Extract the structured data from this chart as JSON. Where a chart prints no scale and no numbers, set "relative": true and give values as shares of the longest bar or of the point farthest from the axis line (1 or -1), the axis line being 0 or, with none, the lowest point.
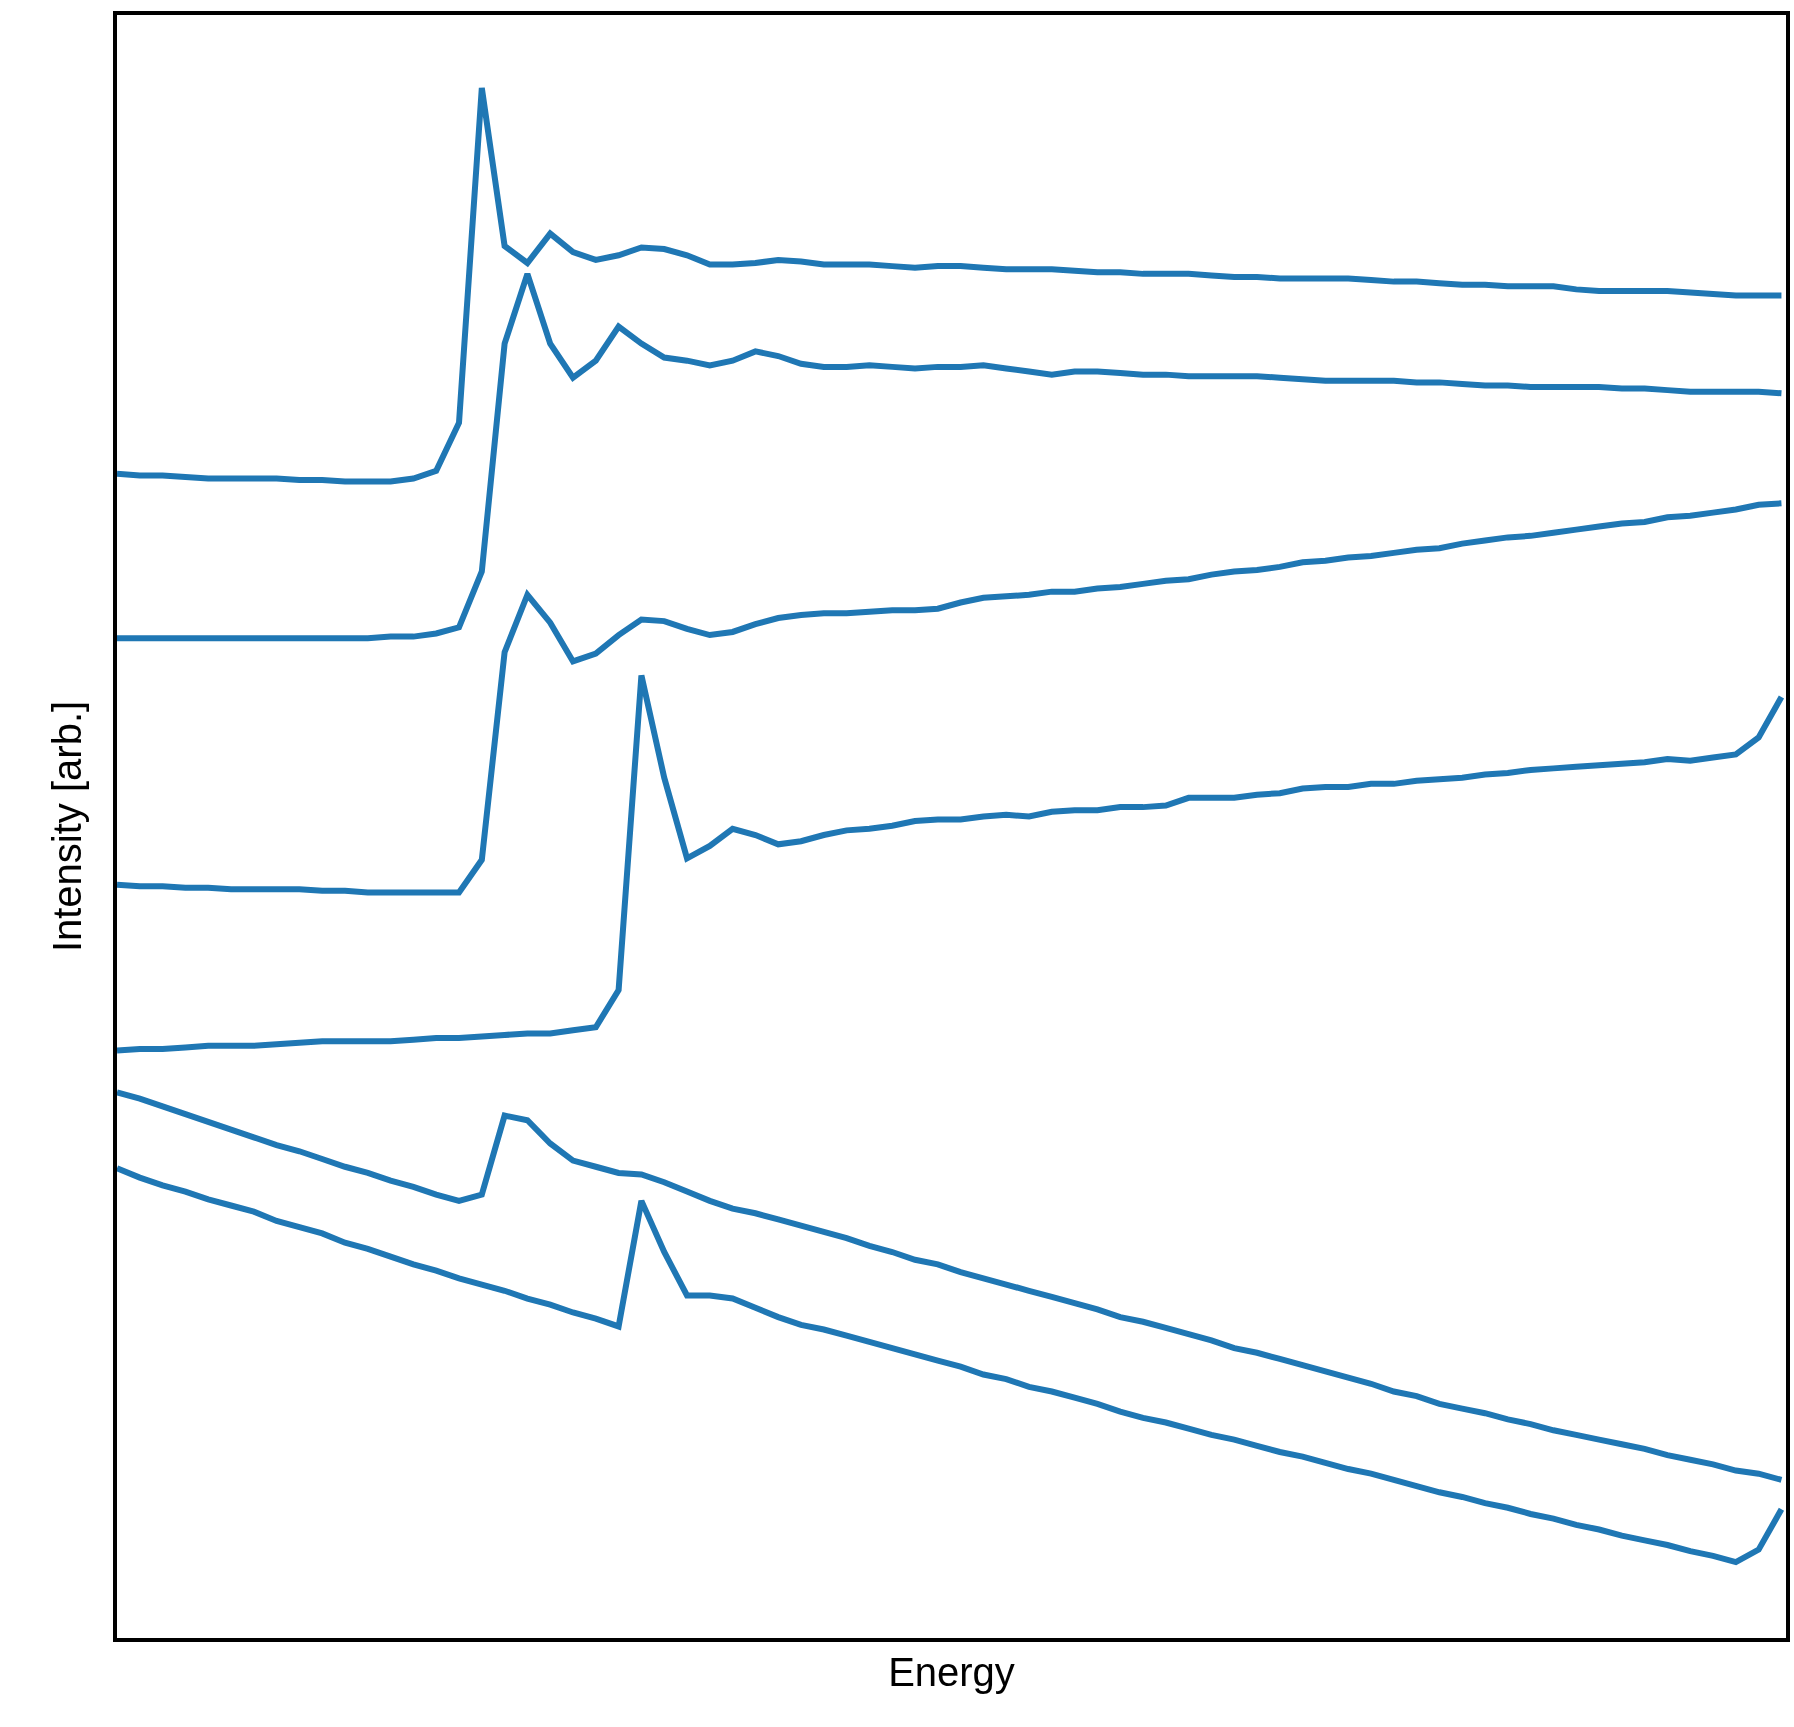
{
  "chart_data": {
    "type": "line",
    "xlabel": "Energy",
    "ylabel": "Intensity [arb.]",
    "relative": true,
    "categories": [
      null,
      null,
      null,
      null,
      null,
      null,
      null,
      null,
      null,
      null,
      null,
      null,
      null,
      null,
      null,
      null,
      null,
      null,
      null,
      null,
      null,
      null,
      null,
      null,
      null,
      null,
      null,
      null,
      null,
      null,
      null,
      null,
      null,
      null,
      null,
      null,
      null,
      null,
      null,
      null,
      null,
      null,
      null,
      null,
      null,
      null,
      null,
      null,
      null,
      null,
      null,
      null,
      null,
      null,
      null,
      null,
      null,
      null,
      null,
      null,
      null,
      null,
      null,
      null,
      null,
      null,
      null,
      null,
      null,
      null,
      null,
      null,
      null,
      null
    ],
    "series": [
      {
        "color": "#1f77b4",
        "values": [
          0.751,
          0.75,
          0.75,
          0.749,
          0.748,
          0.748,
          0.748,
          0.748,
          0.747,
          0.747,
          0.746,
          0.746,
          0.746,
          0.748,
          0.753,
          0.784,
          1.0,
          0.898,
          0.887,
          0.906,
          0.894,
          0.889,
          0.892,
          0.897,
          0.896,
          0.892,
          0.886,
          0.886,
          0.887,
          0.889,
          0.888,
          0.886,
          0.886,
          0.886,
          0.885,
          0.884,
          0.885,
          0.885,
          0.884,
          0.883,
          0.883,
          0.883,
          0.882,
          0.881,
          0.881,
          0.88,
          0.88,
          0.88,
          0.879,
          0.878,
          0.878,
          0.877,
          0.877,
          0.877,
          0.877,
          0.876,
          0.875,
          0.875,
          0.874,
          0.873,
          0.873,
          0.872,
          0.872,
          0.872,
          0.87,
          0.869,
          0.869,
          0.869,
          0.869,
          0.868,
          0.867,
          0.866,
          0.866,
          0.866
        ]
      },
      {
        "color": "#1f77b4",
        "values": [
          0.645,
          0.645,
          0.645,
          0.645,
          0.645,
          0.645,
          0.645,
          0.645,
          0.645,
          0.645,
          0.645,
          0.645,
          0.646,
          0.646,
          0.648,
          0.652,
          0.688,
          0.835,
          0.88,
          0.835,
          0.813,
          0.824,
          0.846,
          0.835,
          0.826,
          0.824,
          0.821,
          0.824,
          0.83,
          0.827,
          0.822,
          0.82,
          0.82,
          0.821,
          0.82,
          0.819,
          0.82,
          0.82,
          0.821,
          0.819,
          0.817,
          0.815,
          0.817,
          0.817,
          0.816,
          0.815,
          0.815,
          0.814,
          0.814,
          0.814,
          0.814,
          0.813,
          0.812,
          0.811,
          0.811,
          0.811,
          0.811,
          0.81,
          0.81,
          0.809,
          0.808,
          0.808,
          0.807,
          0.807,
          0.807,
          0.807,
          0.806,
          0.806,
          0.805,
          0.804,
          0.804,
          0.804,
          0.804,
          0.803
        ]
      },
      {
        "color": "#1f77b4",
        "values": [
          0.486,
          0.485,
          0.485,
          0.484,
          0.484,
          0.483,
          0.483,
          0.483,
          0.483,
          0.482,
          0.482,
          0.481,
          0.481,
          0.481,
          0.481,
          0.481,
          0.502,
          0.636,
          0.673,
          0.655,
          0.63,
          0.635,
          0.647,
          0.657,
          0.656,
          0.651,
          0.647,
          0.649,
          0.654,
          0.658,
          0.66,
          0.661,
          0.661,
          0.662,
          0.663,
          0.663,
          0.664,
          0.668,
          0.671,
          0.672,
          0.673,
          0.675,
          0.675,
          0.677,
          0.678,
          0.68,
          0.682,
          0.683,
          0.686,
          0.688,
          0.689,
          0.691,
          0.694,
          0.695,
          0.697,
          0.698,
          0.7,
          0.702,
          0.703,
          0.706,
          0.708,
          0.71,
          0.711,
          0.713,
          0.715,
          0.717,
          0.719,
          0.72,
          0.723,
          0.724,
          0.726,
          0.728,
          0.731,
          0.732
        ]
      },
      {
        "color": "#1f77b4",
        "values": [
          0.379,
          0.38,
          0.38,
          0.381,
          0.382,
          0.382,
          0.382,
          0.383,
          0.384,
          0.385,
          0.385,
          0.385,
          0.385,
          0.386,
          0.387,
          0.387,
          0.388,
          0.389,
          0.39,
          0.39,
          0.392,
          0.394,
          0.418,
          0.621,
          0.555,
          0.503,
          0.511,
          0.522,
          0.518,
          0.512,
          0.514,
          0.518,
          0.521,
          0.522,
          0.524,
          0.527,
          0.528,
          0.528,
          0.53,
          0.531,
          0.53,
          0.533,
          0.534,
          0.534,
          0.536,
          0.536,
          0.537,
          0.542,
          0.542,
          0.542,
          0.544,
          0.545,
          0.548,
          0.549,
          0.549,
          0.551,
          0.551,
          0.553,
          0.554,
          0.555,
          0.557,
          0.558,
          0.56,
          0.561,
          0.562,
          0.563,
          0.564,
          0.565,
          0.567,
          0.566,
          0.568,
          0.57,
          0.581,
          0.607
        ]
      },
      {
        "color": "#1f77b4",
        "values": [
          0.352,
          0.348,
          0.343,
          0.338,
          0.333,
          0.328,
          0.323,
          0.318,
          0.314,
          0.309,
          0.304,
          0.3,
          0.295,
          0.291,
          0.286,
          0.282,
          0.286,
          0.337,
          0.334,
          0.319,
          0.308,
          0.304,
          0.3,
          0.299,
          0.294,
          0.288,
          0.282,
          0.277,
          0.274,
          0.27,
          0.266,
          0.262,
          0.258,
          0.253,
          0.249,
          0.244,
          0.241,
          0.236,
          0.232,
          0.228,
          0.224,
          0.22,
          0.216,
          0.212,
          0.207,
          0.204,
          0.2,
          0.196,
          0.192,
          0.187,
          0.184,
          0.18,
          0.176,
          0.172,
          0.168,
          0.164,
          0.159,
          0.156,
          0.151,
          0.148,
          0.145,
          0.141,
          0.138,
          0.134,
          0.131,
          0.128,
          0.125,
          0.122,
          0.118,
          0.115,
          0.112,
          0.108,
          0.106,
          0.102
        ]
      },
      {
        "color": "#1f77b4",
        "values": [
          0.303,
          0.297,
          0.292,
          0.288,
          0.283,
          0.279,
          0.275,
          0.269,
          0.265,
          0.261,
          0.255,
          0.251,
          0.246,
          0.241,
          0.237,
          0.232,
          0.228,
          0.224,
          0.219,
          0.215,
          0.21,
          0.206,
          0.201,
          0.282,
          0.249,
          0.221,
          0.221,
          0.219,
          0.213,
          0.207,
          0.202,
          0.199,
          0.195,
          0.191,
          0.187,
          0.183,
          0.179,
          0.175,
          0.17,
          0.167,
          0.162,
          0.159,
          0.155,
          0.151,
          0.146,
          0.142,
          0.139,
          0.135,
          0.131,
          0.128,
          0.124,
          0.12,
          0.117,
          0.113,
          0.109,
          0.106,
          0.102,
          0.098,
          0.094,
          0.091,
          0.087,
          0.084,
          0.08,
          0.077,
          0.073,
          0.07,
          0.066,
          0.063,
          0.06,
          0.056,
          0.053,
          0.049,
          0.057,
          0.083
        ]
      }
    ]
  }
}
